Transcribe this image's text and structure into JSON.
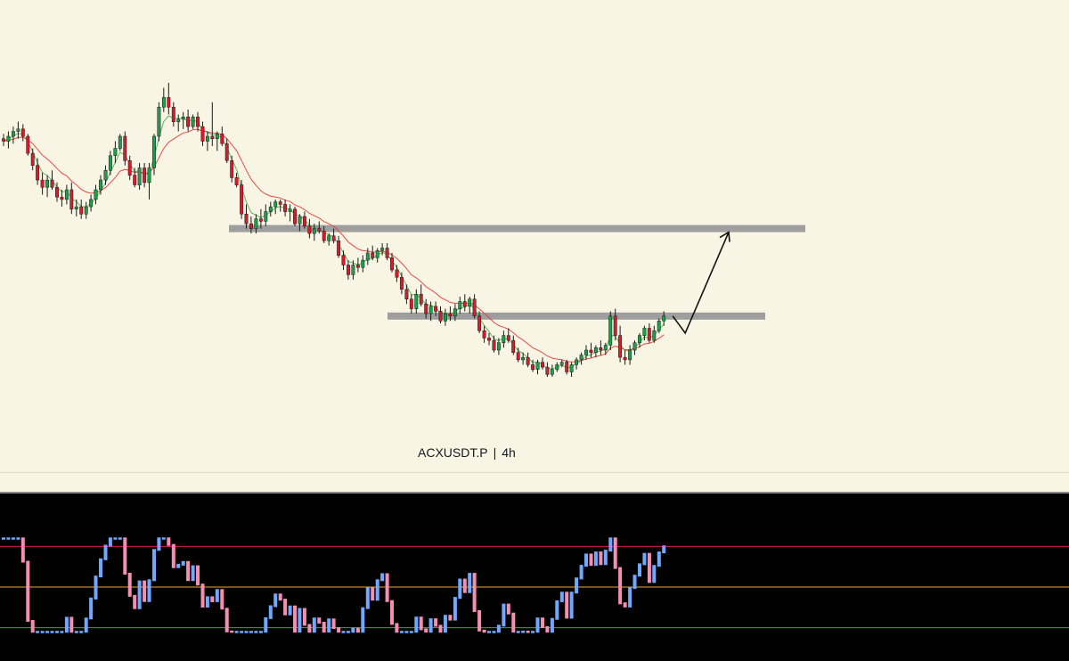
{
  "chart_data": [
    {
      "type": "candlestick",
      "symbol": "ACXUSDT.P",
      "timeframe": "4h",
      "candles": [
        [
          0.355,
          0.357,
          0.352,
          0.354
        ],
        [
          0.354,
          0.358,
          0.351,
          0.356
        ],
        [
          0.356,
          0.36,
          0.353,
          0.358
        ],
        [
          0.358,
          0.362,
          0.355,
          0.359
        ],
        [
          0.359,
          0.361,
          0.354,
          0.356
        ],
        [
          0.356,
          0.357,
          0.348,
          0.349
        ],
        [
          0.349,
          0.351,
          0.342,
          0.344
        ],
        [
          0.344,
          0.347,
          0.336,
          0.338
        ],
        [
          0.338,
          0.341,
          0.332,
          0.335
        ],
        [
          0.335,
          0.34,
          0.331,
          0.338
        ],
        [
          0.338,
          0.342,
          0.334,
          0.335
        ],
        [
          0.335,
          0.337,
          0.329,
          0.331
        ],
        [
          0.331,
          0.334,
          0.327,
          0.33
        ],
        [
          0.33,
          0.336,
          0.328,
          0.334
        ],
        [
          0.334,
          0.337,
          0.324,
          0.326
        ],
        [
          0.326,
          0.33,
          0.323,
          0.327
        ],
        [
          0.327,
          0.33,
          0.322,
          0.324
        ],
        [
          0.324,
          0.329,
          0.322,
          0.327
        ],
        [
          0.327,
          0.332,
          0.325,
          0.33
        ],
        [
          0.33,
          0.336,
          0.328,
          0.334
        ],
        [
          0.334,
          0.34,
          0.332,
          0.338
        ],
        [
          0.338,
          0.344,
          0.336,
          0.342
        ],
        [
          0.342,
          0.35,
          0.34,
          0.348
        ],
        [
          0.348,
          0.354,
          0.345,
          0.351
        ],
        [
          0.351,
          0.357,
          0.35,
          0.356
        ],
        [
          0.356,
          0.358,
          0.344,
          0.346
        ],
        [
          0.346,
          0.348,
          0.338,
          0.34
        ],
        [
          0.34,
          0.343,
          0.335,
          0.336
        ],
        [
          0.336,
          0.345,
          0.334,
          0.343
        ],
        [
          0.343,
          0.345,
          0.335,
          0.337
        ],
        [
          0.337,
          0.345,
          0.33,
          0.343
        ],
        [
          0.343,
          0.357,
          0.34,
          0.356
        ],
        [
          0.356,
          0.37,
          0.354,
          0.368
        ],
        [
          0.368,
          0.376,
          0.366,
          0.372
        ],
        [
          0.372,
          0.378,
          0.365,
          0.368
        ],
        [
          0.368,
          0.37,
          0.36,
          0.362
        ],
        [
          0.362,
          0.365,
          0.358,
          0.363
        ],
        [
          0.363,
          0.366,
          0.359,
          0.364
        ],
        [
          0.364,
          0.367,
          0.358,
          0.36
        ],
        [
          0.36,
          0.365,
          0.359,
          0.364
        ],
        [
          0.364,
          0.366,
          0.358,
          0.36
        ],
        [
          0.36,
          0.362,
          0.352,
          0.354
        ],
        [
          0.354,
          0.358,
          0.35,
          0.356
        ],
        [
          0.356,
          0.37,
          0.352,
          0.355
        ],
        [
          0.355,
          0.358,
          0.35,
          0.357
        ],
        [
          0.357,
          0.36,
          0.352,
          0.353
        ],
        [
          0.353,
          0.355,
          0.345,
          0.346
        ],
        [
          0.346,
          0.348,
          0.337,
          0.339
        ],
        [
          0.339,
          0.341,
          0.335,
          0.336
        ],
        [
          0.336,
          0.338,
          0.322,
          0.324
        ],
        [
          0.324,
          0.328,
          0.318,
          0.32
        ],
        [
          0.32,
          0.323,
          0.316,
          0.318
        ],
        [
          0.318,
          0.324,
          0.316,
          0.322
        ],
        [
          0.322,
          0.326,
          0.318,
          0.321
        ],
        [
          0.321,
          0.328,
          0.319,
          0.325
        ],
        [
          0.325,
          0.329,
          0.323,
          0.327
        ],
        [
          0.327,
          0.33,
          0.324,
          0.329
        ],
        [
          0.329,
          0.33,
          0.325,
          0.328
        ],
        [
          0.328,
          0.33,
          0.323,
          0.325
        ],
        [
          0.325,
          0.328,
          0.321,
          0.326
        ],
        [
          0.326,
          0.327,
          0.319,
          0.32
        ],
        [
          0.32,
          0.324,
          0.317,
          0.323
        ],
        [
          0.323,
          0.325,
          0.318,
          0.319
        ],
        [
          0.319,
          0.322,
          0.314,
          0.316
        ],
        [
          0.316,
          0.32,
          0.313,
          0.318
        ],
        [
          0.318,
          0.321,
          0.316,
          0.317
        ],
        [
          0.317,
          0.319,
          0.312,
          0.313
        ],
        [
          0.313,
          0.316,
          0.311,
          0.315
        ],
        [
          0.315,
          0.318,
          0.312,
          0.313
        ],
        [
          0.313,
          0.315,
          0.306,
          0.307
        ],
        [
          0.307,
          0.309,
          0.301,
          0.303
        ],
        [
          0.303,
          0.305,
          0.297,
          0.299
        ],
        [
          0.299,
          0.305,
          0.297,
          0.303
        ],
        [
          0.303,
          0.306,
          0.3,
          0.302
        ],
        [
          0.302,
          0.307,
          0.3,
          0.305
        ],
        [
          0.305,
          0.31,
          0.303,
          0.308
        ],
        [
          0.308,
          0.311,
          0.305,
          0.306
        ],
        [
          0.306,
          0.31,
          0.304,
          0.309
        ],
        [
          0.309,
          0.312,
          0.307,
          0.31
        ],
        [
          0.31,
          0.312,
          0.305,
          0.306
        ],
        [
          0.306,
          0.308,
          0.3,
          0.301
        ],
        [
          0.301,
          0.303,
          0.296,
          0.298
        ],
        [
          0.298,
          0.3,
          0.291,
          0.293
        ],
        [
          0.293,
          0.295,
          0.287,
          0.289
        ],
        [
          0.289,
          0.291,
          0.283,
          0.285
        ],
        [
          0.285,
          0.293,
          0.283,
          0.291
        ],
        [
          0.291,
          0.295,
          0.286,
          0.287
        ],
        [
          0.287,
          0.289,
          0.281,
          0.283
        ],
        [
          0.283,
          0.288,
          0.28,
          0.286
        ],
        [
          0.286,
          0.288,
          0.282,
          0.284
        ],
        [
          0.284,
          0.286,
          0.279,
          0.28
        ],
        [
          0.28,
          0.285,
          0.278,
          0.283
        ],
        [
          0.283,
          0.286,
          0.28,
          0.282
        ],
        [
          0.282,
          0.287,
          0.28,
          0.285
        ],
        [
          0.285,
          0.29,
          0.283,
          0.288
        ],
        [
          0.288,
          0.291,
          0.284,
          0.286
        ],
        [
          0.286,
          0.29,
          0.283,
          0.289
        ],
        [
          0.289,
          0.291,
          0.281,
          0.282
        ],
        [
          0.282,
          0.284,
          0.275,
          0.276
        ],
        [
          0.276,
          0.278,
          0.271,
          0.273
        ],
        [
          0.273,
          0.275,
          0.27,
          0.272
        ],
        [
          0.272,
          0.274,
          0.267,
          0.268
        ],
        [
          0.268,
          0.273,
          0.266,
          0.271
        ],
        [
          0.271,
          0.276,
          0.269,
          0.274
        ],
        [
          0.274,
          0.277,
          0.271,
          0.272
        ],
        [
          0.272,
          0.274,
          0.266,
          0.267
        ],
        [
          0.267,
          0.269,
          0.263,
          0.264
        ],
        [
          0.264,
          0.267,
          0.262,
          0.265
        ],
        [
          0.265,
          0.267,
          0.261,
          0.262
        ],
        [
          0.262,
          0.264,
          0.259,
          0.26
        ],
        [
          0.26,
          0.264,
          0.258,
          0.263
        ],
        [
          0.263,
          0.265,
          0.26,
          0.261
        ],
        [
          0.261,
          0.263,
          0.257,
          0.258
        ],
        [
          0.258,
          0.262,
          0.257,
          0.26
        ],
        [
          0.26,
          0.263,
          0.259,
          0.262
        ],
        [
          0.262,
          0.264,
          0.261,
          0.263
        ],
        [
          0.263,
          0.264,
          0.258,
          0.259
        ],
        [
          0.259,
          0.263,
          0.257,
          0.262
        ],
        [
          0.262,
          0.265,
          0.26,
          0.264
        ],
        [
          0.264,
          0.267,
          0.262,
          0.266
        ],
        [
          0.266,
          0.27,
          0.264,
          0.268
        ],
        [
          0.268,
          0.271,
          0.265,
          0.267
        ],
        [
          0.267,
          0.27,
          0.265,
          0.269
        ],
        [
          0.269,
          0.272,
          0.266,
          0.268
        ],
        [
          0.268,
          0.271,
          0.266,
          0.27
        ],
        [
          0.27,
          0.284,
          0.268,
          0.282
        ],
        [
          0.282,
          0.285,
          0.272,
          0.274
        ],
        [
          0.274,
          0.278,
          0.263,
          0.265
        ],
        [
          0.265,
          0.268,
          0.262,
          0.264
        ],
        [
          0.264,
          0.27,
          0.262,
          0.268
        ],
        [
          0.268,
          0.272,
          0.266,
          0.271
        ],
        [
          0.271,
          0.275,
          0.269,
          0.274
        ],
        [
          0.274,
          0.278,
          0.272,
          0.277
        ],
        [
          0.277,
          0.279,
          0.271,
          0.272
        ],
        [
          0.272,
          0.278,
          0.271,
          0.276
        ],
        [
          0.276,
          0.281,
          0.275,
          0.28
        ],
        [
          0.28,
          0.284,
          0.278,
          0.282
        ]
      ],
      "ema_fast_color": "#4caf50",
      "ema_slow_color": "#e53935",
      "levels": [
        0.318,
        0.282
      ],
      "projection": [
        [
          0.282,
          0.275
        ],
        [
          0.318
        ]
      ],
      "bull_color": "#1e9e4a",
      "bear_color": "#d81b2a"
    },
    {
      "type": "oscillator",
      "upper_line_color": "#d81b60",
      "middle_line_color": "#f9a825",
      "lower_line_color": "#43a047",
      "levels": [
        70,
        50,
        30
      ],
      "up_color": "#6fa8ff",
      "down_color": "#f48fb1"
    }
  ]
}
